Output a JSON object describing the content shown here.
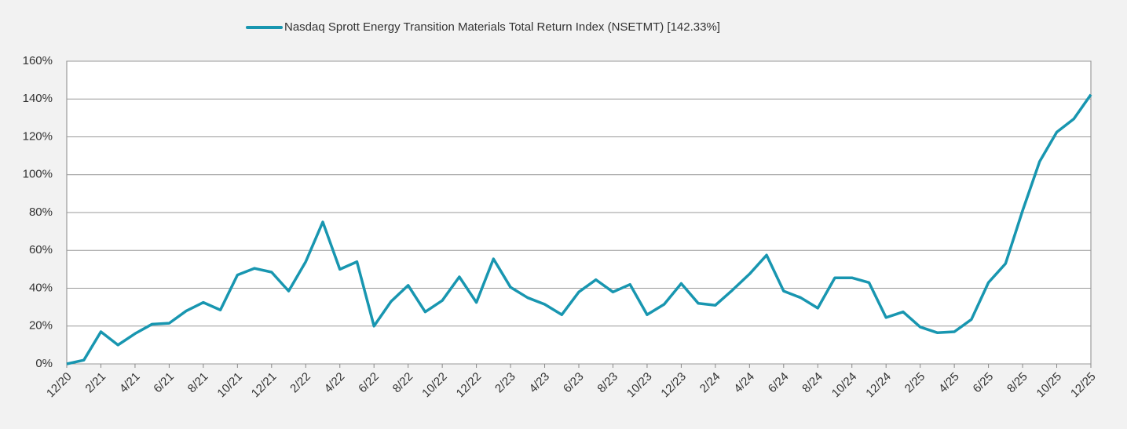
{
  "chart_data": {
    "type": "line",
    "categories": [
      "12/20",
      null,
      "2/21",
      null,
      "4/21",
      null,
      "6/21",
      null,
      "8/21",
      null,
      "10/21",
      null,
      "12/21",
      null,
      "2/22",
      null,
      "4/22",
      null,
      "6/22",
      null,
      "8/22",
      null,
      "10/22",
      null,
      "12/22",
      null,
      "2/23",
      null,
      "4/23",
      null,
      "6/23",
      null,
      "8/23",
      null,
      "10/23",
      null,
      "12/23",
      null,
      "2/24",
      null,
      "4/24",
      null,
      "6/24",
      null,
      "8/24",
      null,
      "10/24",
      null,
      "12/24",
      null,
      "2/25",
      null,
      "4/25",
      null,
      "6/25",
      null,
      "8/25",
      null,
      "10/25",
      null,
      "12/25"
    ],
    "series": [
      {
        "name": "Nasdaq Sprott Energy Transition Materials Total Return Index (NSETMT) [142.33%]",
        "color": "#1896b0",
        "values": [
          0,
          2,
          17,
          10,
          16,
          21,
          21.5,
          28,
          32.5,
          28.5,
          47,
          50.5,
          48.5,
          38.5,
          54,
          75,
          50,
          54,
          20,
          33,
          41.5,
          27.5,
          33.5,
          46,
          32.5,
          55.5,
          40.5,
          35,
          31.5,
          26,
          38,
          44.5,
          38,
          42,
          26,
          31.5,
          42.5,
          32,
          31,
          39,
          47.5,
          57.5,
          38.5,
          35,
          29.5,
          45.5,
          45.5,
          43,
          24.5,
          27.5,
          19.5,
          16.5,
          17,
          23.5,
          43,
          53,
          81,
          107,
          122.5,
          129.5,
          142.33
        ]
      }
    ],
    "ylim": [
      0,
      160
    ],
    "yticks": [
      {
        "value": 0,
        "label": "0%"
      },
      {
        "value": 20,
        "label": "20%"
      },
      {
        "value": 40,
        "label": "40%"
      },
      {
        "value": 60,
        "label": "60%"
      },
      {
        "value": 80,
        "label": "80%"
      },
      {
        "value": 100,
        "label": "100%"
      },
      {
        "value": 120,
        "label": "120%"
      },
      {
        "value": 140,
        "label": "140%"
      },
      {
        "value": 160,
        "label": "160%"
      }
    ],
    "grid": true,
    "legend": "top"
  }
}
